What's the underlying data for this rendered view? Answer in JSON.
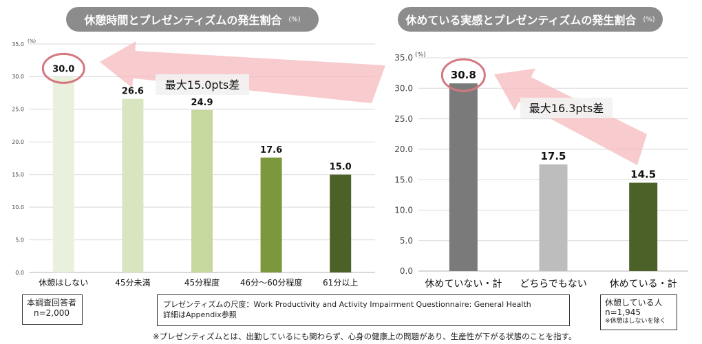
{
  "left_title": {
    "text": "休憩時間とプレゼンティズムの発生割合",
    "unit": "(%)"
  },
  "right_title": {
    "text": "休めている実感とプレゼンティズムの発生割合",
    "unit": "(%)"
  },
  "chart_data": [
    {
      "type": "bar",
      "title": "休憩時間とプレゼンティズムの発生割合",
      "ylabel": "(%)",
      "ylim": [
        0,
        35
      ],
      "yticks": [
        "0.0",
        "5.0",
        "10.0",
        "15.0",
        "20.0",
        "25.0",
        "30.0",
        "35.0"
      ],
      "categories": [
        "休憩はしない",
        "45分未満",
        "45分程度",
        "46分～60分程度",
        "61分以上"
      ],
      "values": [
        30.0,
        26.6,
        24.9,
        17.6,
        15.0
      ],
      "value_labels": [
        "30.0",
        "26.6",
        "24.9",
        "17.6",
        "15.0"
      ],
      "colors": [
        "#e9f0dd",
        "#d7e6c1",
        "#c5d99f",
        "#7b983c",
        "#4c6128"
      ],
      "annotation": "最大15.0pts差",
      "grid": true
    },
    {
      "type": "bar",
      "title": "休めている実感とプレゼンティズムの発生割合",
      "ylabel": "(%)",
      "ylim": [
        0,
        35
      ],
      "yticks": [
        "0.0",
        "5.0",
        "10.0",
        "15.0",
        "20.0",
        "25.0",
        "30.0",
        "35.0"
      ],
      "categories": [
        "休めていない・計",
        "どちらでもない",
        "休めている・計"
      ],
      "values": [
        30.8,
        17.5,
        14.5
      ],
      "value_labels": [
        "30.8",
        "17.5",
        "14.5"
      ],
      "colors": [
        "#7a7a7a",
        "#bdbdbd",
        "#4c6128"
      ],
      "annotation": "最大16.3pts差",
      "grid": true
    }
  ],
  "left_box": {
    "line1": "本調査回答者",
    "line2": "n=2,000"
  },
  "mid_box": {
    "line1": "プレゼンティズムの尺度：Work Productivity and Activity Impairment Questionnaire: General Health",
    "line2": "詳細はAppendix参照"
  },
  "right_box": {
    "line1": "休憩している人",
    "line2": "n=1,945",
    "line3": "※休憩はしないを除く"
  },
  "footnote": "※プレゼンティズムとは、出勤しているにも関わらず、心身の健康上の問題があり、生産性が下がる状態のことを指す。",
  "colors": {
    "pill": "#8c8c8c",
    "arrow": "#f5b9bd",
    "circle": "#d4777f",
    "grid": "#d9d9d9"
  }
}
